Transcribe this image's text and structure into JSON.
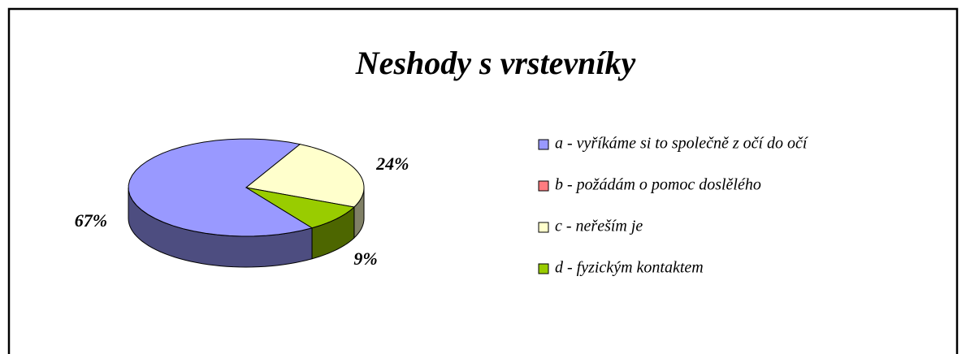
{
  "chart_data": {
    "type": "pie3d",
    "title": "Neshody s vrstevníky",
    "categories": [
      "a - vyříkáme si to společně z očí do očí",
      "b - požádám o pomoc doslělého",
      "c - neřeším je",
      "d - fyzickým kontaktem"
    ],
    "values": [
      67,
      0,
      24,
      9
    ],
    "value_labels": [
      "67%",
      null,
      "24%",
      "9%"
    ],
    "colors": [
      "#9999ff",
      "#ff7c80",
      "#ffffcc",
      "#99cc00"
    ],
    "legend": "right"
  }
}
